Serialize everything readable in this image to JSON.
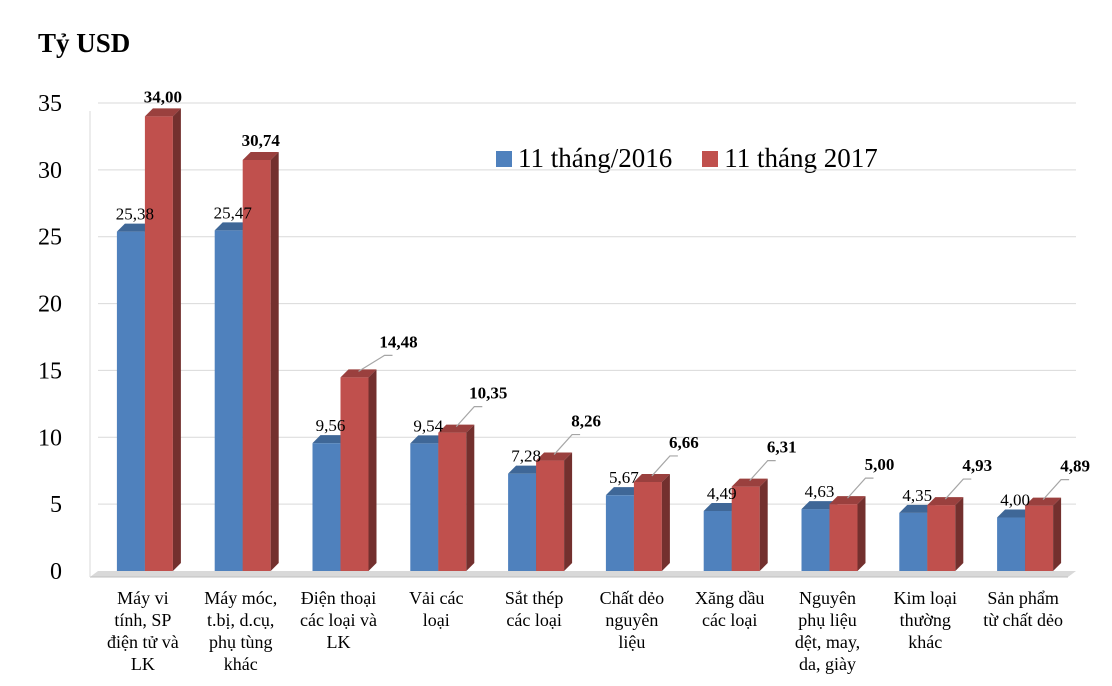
{
  "chart_data": {
    "type": "bar",
    "unit_label": "Tỷ USD",
    "categories": [
      [
        "Máy vi",
        "tính, SP",
        "điện tử và",
        "LK"
      ],
      [
        "Máy móc,",
        "t.bị, d.cụ,",
        "phụ tùng",
        "khác"
      ],
      [
        "Điện thoại",
        "các loại và",
        "LK"
      ],
      [
        "Vải các",
        "loại"
      ],
      [
        "Sắt thép",
        "các loại"
      ],
      [
        "Chất dẻo",
        "nguyên",
        "liệu"
      ],
      [
        "Xăng dầu",
        "các loại"
      ],
      [
        "Nguyên",
        "phụ liệu",
        "dệt, may,",
        "da, giày"
      ],
      [
        "Kim loại",
        "thường",
        "khác"
      ],
      [
        "Sản phẩm",
        "từ chất dẻo"
      ]
    ],
    "series": [
      {
        "name": "11 tháng/2016",
        "color": "#4F81BD",
        "values": [
          25.38,
          25.47,
          9.56,
          9.54,
          7.28,
          5.67,
          4.49,
          4.63,
          4.35,
          4.0
        ],
        "labels": [
          "25,38",
          "25,47",
          "9,56",
          "9,54",
          "7,28",
          "5,67",
          "4,49",
          "4,63",
          "4,35",
          "4,00"
        ]
      },
      {
        "name": "11 tháng 2017",
        "color": "#C0504D",
        "values": [
          34.0,
          30.74,
          14.48,
          10.35,
          8.26,
          6.66,
          6.31,
          5.0,
          4.93,
          4.89
        ],
        "labels": [
          "34,00",
          "30,74",
          "14,48",
          "10,35",
          "8,26",
          "6,66",
          "6,31",
          "5,00",
          "4,93",
          "4,89"
        ]
      }
    ],
    "yticks": [
      "0",
      "5",
      "10",
      "15",
      "20",
      "25",
      "30",
      "35"
    ],
    "ylim": [
      0,
      35
    ],
    "grid": true,
    "legend_position": "top-right",
    "bar_style": "3d"
  }
}
